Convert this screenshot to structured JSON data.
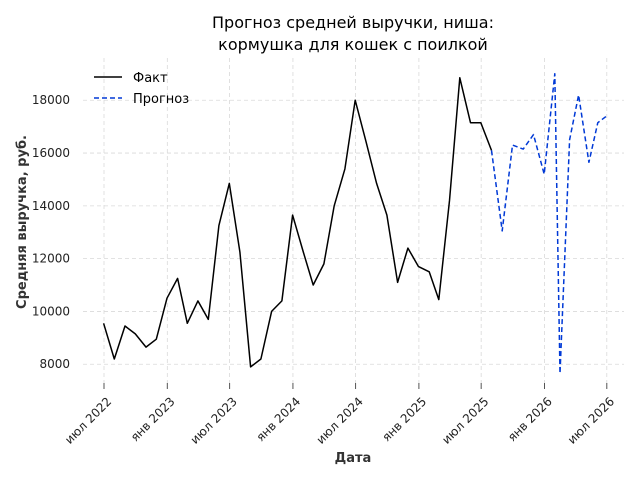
{
  "chart_data": {
    "type": "line",
    "title_line1": "Прогноз средней выручки, ниша:",
    "title_line2": "кормушка для кошек с поилкой",
    "xlabel": "Дата",
    "ylabel": "Средняя выручка, руб.",
    "ylim": [
      7100,
      19600
    ],
    "y_ticks": [
      8000,
      10000,
      12000,
      14000,
      16000,
      18000
    ],
    "x_range": [
      "2022-05-01",
      "2026-08-20"
    ],
    "x_ticks": [
      {
        "date": "2022-07-01",
        "label": "июл 2022"
      },
      {
        "date": "2023-01-01",
        "label": "янв 2023"
      },
      {
        "date": "2023-07-01",
        "label": "июл 2023"
      },
      {
        "date": "2024-01-01",
        "label": "янв 2024"
      },
      {
        "date": "2024-07-01",
        "label": "июл 2024"
      },
      {
        "date": "2025-01-01",
        "label": "янв 2025"
      },
      {
        "date": "2025-07-01",
        "label": "июл 2025"
      },
      {
        "date": "2026-01-01",
        "label": "янв 2026"
      },
      {
        "date": "2026-07-01",
        "label": "июл 2026"
      }
    ],
    "grid": true,
    "legend_position": "top-left",
    "series": [
      {
        "name": "Факт",
        "color": "#000000",
        "style": "solid",
        "points": [
          [
            "2022-06-30",
            9550
          ],
          [
            "2022-07-31",
            8200
          ],
          [
            "2022-08-31",
            9450
          ],
          [
            "2022-09-30",
            9150
          ],
          [
            "2022-10-31",
            8650
          ],
          [
            "2022-11-30",
            8950
          ],
          [
            "2022-12-31",
            10500
          ],
          [
            "2023-01-31",
            11250
          ],
          [
            "2023-02-28",
            9550
          ],
          [
            "2023-03-31",
            10400
          ],
          [
            "2023-04-30",
            9700
          ],
          [
            "2023-05-31",
            13250
          ],
          [
            "2023-06-30",
            14850
          ],
          [
            "2023-07-31",
            12250
          ],
          [
            "2023-08-31",
            7900
          ],
          [
            "2023-09-30",
            8200
          ],
          [
            "2023-10-31",
            10000
          ],
          [
            "2023-11-30",
            10400
          ],
          [
            "2023-12-31",
            13650
          ],
          [
            "2024-01-31",
            12250
          ],
          [
            "2024-02-29",
            11000
          ],
          [
            "2024-03-31",
            11800
          ],
          [
            "2024-04-30",
            14000
          ],
          [
            "2024-05-31",
            15400
          ],
          [
            "2024-06-30",
            18000
          ],
          [
            "2024-07-31",
            16450
          ],
          [
            "2024-08-31",
            14850
          ],
          [
            "2024-09-30",
            13650
          ],
          [
            "2024-10-31",
            11100
          ],
          [
            "2024-11-30",
            12400
          ],
          [
            "2024-12-31",
            11700
          ],
          [
            "2025-01-31",
            11500
          ],
          [
            "2025-02-28",
            10450
          ],
          [
            "2025-03-31",
            14200
          ],
          [
            "2025-04-30",
            18850
          ],
          [
            "2025-05-31",
            17150
          ],
          [
            "2025-06-30",
            17150
          ],
          [
            "2025-07-31",
            16100
          ]
        ]
      },
      {
        "name": "Прогноз",
        "color": "#0039d6",
        "style": "dashed",
        "points": [
          [
            "2025-07-31",
            16100
          ],
          [
            "2025-08-31",
            13050
          ],
          [
            "2025-09-30",
            16300
          ],
          [
            "2025-10-31",
            16150
          ],
          [
            "2025-11-30",
            16700
          ],
          [
            "2025-12-31",
            15200
          ],
          [
            "2026-01-31",
            19000
          ],
          [
            "2026-02-15",
            7650
          ],
          [
            "2026-03-15",
            16500
          ],
          [
            "2026-04-10",
            18200
          ],
          [
            "2026-05-10",
            15650
          ],
          [
            "2026-06-05",
            17150
          ],
          [
            "2026-07-05",
            17450
          ]
        ]
      }
    ]
  }
}
